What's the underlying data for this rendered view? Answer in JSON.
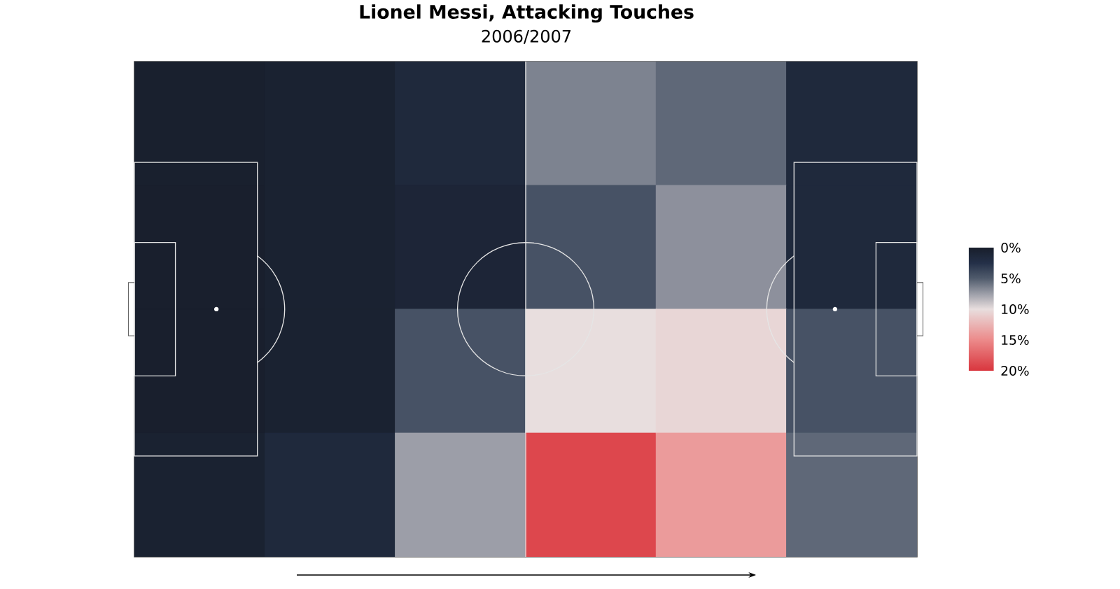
{
  "chart_data": {
    "type": "heatmap",
    "title": "Lionel Messi, Attacking Touches",
    "subtitle": "2006/2007",
    "categories": [
      null,
      null,
      null,
      null,
      null,
      null
    ],
    "y_categories": [
      null,
      null,
      null,
      null
    ],
    "cells": [
      [
        0.3,
        0.5,
        1.5,
        6.5,
        5.5,
        1.5
      ],
      [
        0.2,
        0.5,
        1,
        4.5,
        7,
        1.5
      ],
      [
        0.2,
        0.5,
        4.5,
        10,
        10.5,
        4.5
      ],
      [
        0.5,
        1.5,
        7.5,
        19,
        14,
        5.5
      ]
    ],
    "clim": [
      0,
      20
    ],
    "cticks": [
      {
        "value": 0,
        "label": "0%"
      },
      {
        "value": 5,
        "label": "5%"
      },
      {
        "value": 10,
        "label": "10%"
      },
      {
        "value": 15,
        "label": "15%"
      },
      {
        "value": 20,
        "label": "20%"
      }
    ]
  }
}
